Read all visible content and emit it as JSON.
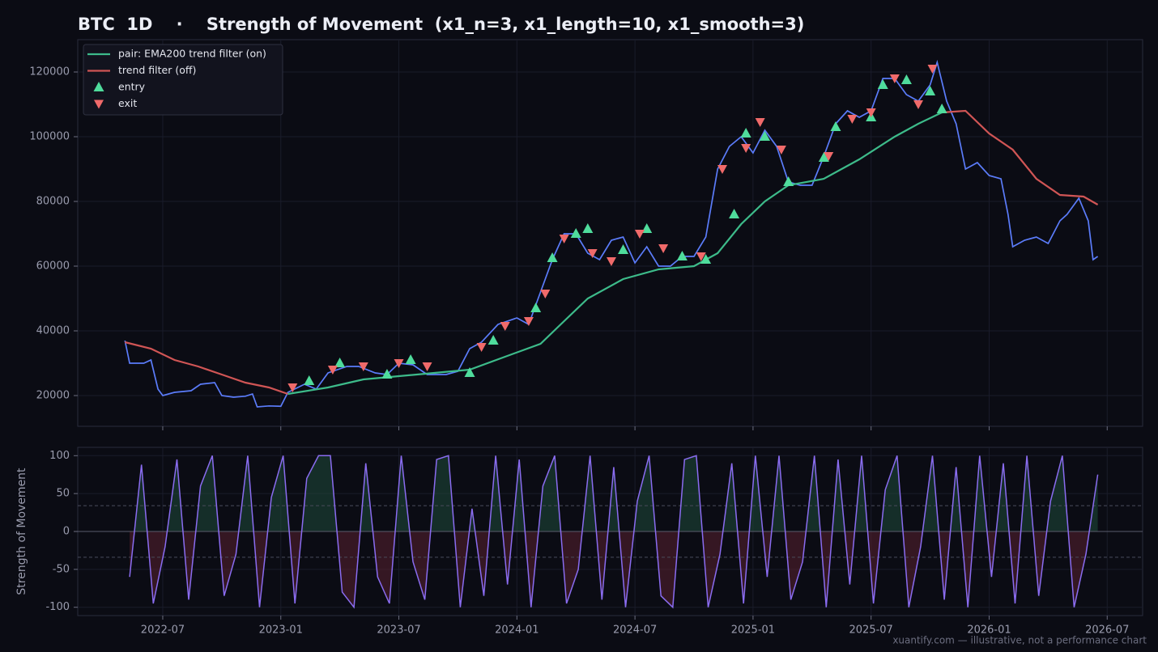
{
  "title": "BTC  1D    ·    Strength of Movement  (x1_n=3, x1_length=10, x1_smooth=3)",
  "footer": "xuantify.com — illustrative, not a performance chart",
  "chart_data": [
    {
      "type": "line",
      "xlim": [
        2022.14,
        2026.65
      ],
      "ylim": [
        10500,
        130000
      ],
      "yticks": [
        20000,
        40000,
        60000,
        80000,
        100000,
        120000
      ],
      "grid": true,
      "legend": "upper left",
      "series": [
        {
          "color": "#5b7cfa",
          "x": [
            2022.34,
            2022.36,
            2022.42,
            2022.45,
            2022.48,
            2022.5,
            2022.55,
            2022.62,
            2022.66,
            2022.72,
            2022.75,
            2022.8,
            2022.85,
            2022.88,
            2022.9,
            2022.95,
            2023.0,
            2023.03,
            2023.1,
            2023.15,
            2023.2,
            2023.28,
            2023.33,
            2023.4,
            2023.45,
            2023.5,
            2023.56,
            2023.62,
            2023.7,
            2023.75,
            2023.8,
            2023.85,
            2023.92,
            2024.0,
            2024.05,
            2024.1,
            2024.15,
            2024.2,
            2024.25,
            2024.3,
            2024.35,
            2024.4,
            2024.45,
            2024.5,
            2024.55,
            2024.6,
            2024.65,
            2024.7,
            2024.75,
            2024.8,
            2024.85,
            2024.9,
            2024.95,
            2025.0,
            2025.05,
            2025.1,
            2025.15,
            2025.2,
            2025.25,
            2025.3,
            2025.35,
            2025.4,
            2025.45,
            2025.5,
            2025.55,
            2025.6,
            2025.65,
            2025.7,
            2025.75,
            2025.78,
            2025.82,
            2025.86,
            2025.9,
            2025.95,
            2026.0,
            2026.05,
            2026.08,
            2026.1,
            2026.15,
            2026.2,
            2026.25,
            2026.3,
            2026.33,
            2026.38,
            2026.42,
            2026.44,
            2026.46
          ],
          "values": [
            37000,
            30000,
            30000,
            31000,
            22000,
            20000,
            21000,
            21500,
            23500,
            24000,
            20000,
            19500,
            19800,
            20500,
            16500,
            16800,
            16700,
            21000,
            23500,
            22000,
            27000,
            29000,
            29000,
            27000,
            26500,
            30000,
            29500,
            26500,
            26500,
            27500,
            34500,
            36500,
            42000,
            44000,
            42000,
            52000,
            62000,
            70000,
            70000,
            64000,
            62000,
            68000,
            69000,
            61000,
            66000,
            60000,
            60000,
            63000,
            63000,
            69000,
            90000,
            97000,
            100000,
            95000,
            102000,
            97000,
            86000,
            85000,
            85000,
            94000,
            104000,
            108000,
            106000,
            108000,
            118000,
            118000,
            113000,
            111000,
            116000,
            123000,
            111000,
            104000,
            90000,
            92000,
            88000,
            87000,
            76000,
            66000,
            68000,
            69000,
            67000,
            74000,
            76000,
            81000,
            74000,
            62000,
            63000
          ]
        },
        {
          "name": "pair: EMA200 trend filter (on)",
          "color": "#3dbb8a",
          "x": [
            2023.03,
            2023.2,
            2023.35,
            2023.5,
            2023.65,
            2023.8,
            2023.95,
            2024.1,
            2024.2,
            2024.3,
            2024.45,
            2024.6,
            2024.75,
            2024.85,
            2024.95,
            2025.05,
            2025.15,
            2025.3,
            2025.45,
            2025.6,
            2025.7,
            2025.8
          ],
          "values": [
            20500,
            22500,
            25000,
            26000,
            27000,
            28000,
            32000,
            36000,
            43000,
            50000,
            56000,
            59000,
            60000,
            64000,
            73000,
            80000,
            85000,
            87000,
            93000,
            100000,
            104000,
            107500
          ]
        },
        {
          "name": "trend filter (off)",
          "color": "#d05555",
          "x": [
            2022.34,
            2022.45,
            2022.55,
            2022.65,
            2022.75,
            2022.85,
            2022.95,
            2023.03,
            2024.4,
            2025.8,
            2025.9,
            2026.0,
            2026.1,
            2026.2,
            2026.3,
            2026.4,
            2026.46
          ],
          "values": [
            36500,
            34500,
            31000,
            29000,
            26500,
            24000,
            22500,
            20500,
            null,
            107500,
            108000,
            101000,
            96000,
            87000,
            82000,
            81500,
            79000
          ]
        },
        {
          "name": "entry",
          "color": "#4fdc9c",
          "marker": "triangle-up",
          "x": [
            2023.12,
            2023.25,
            2023.45,
            2023.55,
            2023.8,
            2023.9,
            2024.08,
            2024.15,
            2024.25,
            2024.3,
            2024.45,
            2024.55,
            2024.7,
            2024.8,
            2024.92,
            2024.97,
            2025.05,
            2025.15,
            2025.3,
            2025.35,
            2025.5,
            2025.55,
            2025.65,
            2025.75,
            2025.8
          ],
          "values": [
            24500,
            30000,
            26500,
            31000,
            27000,
            37000,
            47000,
            62500,
            70000,
            71500,
            65000,
            71500,
            63000,
            62000,
            76000,
            101000,
            100000,
            86000,
            93500,
            103000,
            106000,
            116000,
            117500,
            114000,
            108500
          ]
        },
        {
          "name": "exit",
          "color": "#f06a6a",
          "marker": "triangle-down",
          "x": [
            2023.05,
            2023.22,
            2023.35,
            2023.5,
            2023.62,
            2023.85,
            2023.95,
            2024.05,
            2024.12,
            2024.2,
            2024.32,
            2024.4,
            2024.52,
            2024.62,
            2024.78,
            2024.87,
            2024.97,
            2025.03,
            2025.12,
            2025.32,
            2025.42,
            2025.5,
            2025.6,
            2025.7,
            2025.76
          ],
          "values": [
            22500,
            28000,
            29000,
            30000,
            29000,
            35000,
            41500,
            43000,
            51500,
            68500,
            64000,
            61500,
            70000,
            65500,
            63000,
            90000,
            96500,
            104500,
            96000,
            94000,
            105500,
            107500,
            118000,
            110000,
            121000
          ]
        }
      ]
    },
    {
      "type": "line",
      "ylabel": "Strength of Movement",
      "color": "#8a6cf0",
      "xlim": [
        2022.14,
        2026.65
      ],
      "ylim": [
        -111,
        111
      ],
      "yticks": [
        -100,
        -50,
        0,
        50,
        100
      ],
      "levels": [
        34,
        -34
      ],
      "grid": true,
      "xticks": [
        {
          "value": 2022.5,
          "label": "2022-07"
        },
        {
          "value": 2023.0,
          "label": "2023-01"
        },
        {
          "value": 2023.5,
          "label": "2023-07"
        },
        {
          "value": 2024.0,
          "label": "2024-01"
        },
        {
          "value": 2024.5,
          "label": "2024-07"
        },
        {
          "value": 2025.0,
          "label": "2025-01"
        },
        {
          "value": 2025.5,
          "label": "2025-07"
        },
        {
          "value": 2026.0,
          "label": "2026-01"
        },
        {
          "value": 2026.5,
          "label": "2026-07"
        }
      ],
      "x": [
        2022.36,
        2022.41,
        2022.46,
        2022.51,
        2022.56,
        2022.61,
        2022.66,
        2022.71,
        2022.76,
        2022.81,
        2022.86,
        2022.91,
        2022.96,
        2023.01,
        2023.06,
        2023.11,
        2023.16,
        2023.21,
        2023.26,
        2023.31,
        2023.36,
        2023.41,
        2023.46,
        2023.51,
        2023.56,
        2023.61,
        2023.66,
        2023.71,
        2023.76,
        2023.81,
        2023.86,
        2023.91,
        2023.96,
        2024.01,
        2024.06,
        2024.11,
        2024.16,
        2024.21,
        2024.26,
        2024.31,
        2024.36,
        2024.41,
        2024.46,
        2024.51,
        2024.56,
        2024.61,
        2024.66,
        2024.71,
        2024.76,
        2024.81,
        2024.86,
        2024.91,
        2024.96,
        2025.01,
        2025.06,
        2025.11,
        2025.16,
        2025.21,
        2025.26,
        2025.31,
        2025.36,
        2025.41,
        2025.46,
        2025.51,
        2025.56,
        2025.61,
        2025.66,
        2025.71,
        2025.76,
        2025.81,
        2025.86,
        2025.91,
        2025.96,
        2026.01,
        2026.06,
        2026.11,
        2026.16,
        2026.21,
        2026.26,
        2026.31,
        2026.36,
        2026.41,
        2026.46
      ],
      "values": [
        -60,
        88,
        -95,
        -20,
        95,
        -90,
        60,
        100,
        -85,
        -30,
        100,
        -100,
        45,
        100,
        -95,
        70,
        100,
        100,
        -80,
        -100,
        90,
        -60,
        -95,
        100,
        -40,
        -90,
        95,
        100,
        -100,
        30,
        -85,
        100,
        -70,
        95,
        -100,
        60,
        100,
        -95,
        -50,
        100,
        -90,
        85,
        -100,
        40,
        100,
        -85,
        -100,
        95,
        100,
        -100,
        -30,
        90,
        -95,
        100,
        -60,
        100,
        -90,
        -40,
        100,
        -100,
        95,
        -70,
        100,
        -95,
        55,
        100,
        -100,
        -20,
        100,
        -90,
        85,
        -100,
        100,
        -60,
        90,
        -95,
        100,
        -85,
        40,
        100,
        -100,
        -30,
        75
      ]
    }
  ]
}
